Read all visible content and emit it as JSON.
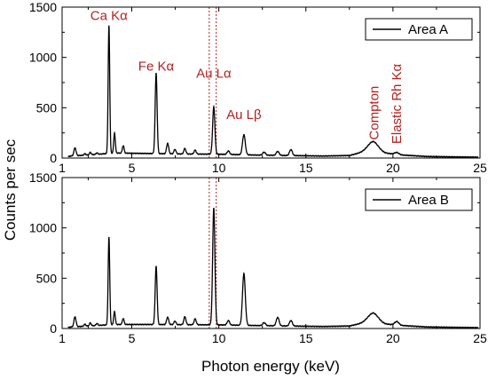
{
  "chart_data": {
    "type": "line",
    "xlabel": "Photon energy (keV)",
    "ylabel": "Counts per sec",
    "xlim": [
      1,
      25
    ],
    "ylim": [
      0,
      1500
    ],
    "x_ticks": [
      "1",
      "5",
      "10",
      "15",
      "20",
      "25"
    ],
    "y_ticks": [
      "0",
      "500",
      "1000",
      "1500"
    ],
    "grid": false,
    "marker_lines_kev": [
      9.45,
      9.85
    ],
    "annotation_color": "#b22222",
    "line_color": "#000000",
    "panels": [
      {
        "legend": "Area A",
        "legend_position": "top-right",
        "annotations": [
          {
            "text": "Ca Kα",
            "x": 3.69,
            "y": 1370
          },
          {
            "text": "Fe Kα",
            "x": 6.4,
            "y": 870
          },
          {
            "text": "Au Lα",
            "x": 9.71,
            "y": 800
          },
          {
            "text": "Au Lβ",
            "x": 11.44,
            "y": 390
          },
          {
            "text": "Compton",
            "x": 18.9,
            "y": 180,
            "rotate": true
          },
          {
            "text": "Elastic Rh Kα",
            "x": 20.2,
            "y": 140,
            "rotate": true
          }
        ],
        "background": [
          [
            1,
            0
          ],
          [
            1.5,
            20
          ],
          [
            2.5,
            30
          ],
          [
            4,
            50
          ],
          [
            6,
            45
          ],
          [
            8,
            40
          ],
          [
            10,
            38
          ],
          [
            12,
            30
          ],
          [
            14,
            25
          ],
          [
            16,
            20
          ],
          [
            17.5,
            25
          ],
          [
            18.3,
            60
          ],
          [
            18.9,
            80
          ],
          [
            19.5,
            50
          ],
          [
            20.5,
            30
          ],
          [
            22,
            15
          ],
          [
            25,
            8
          ]
        ],
        "peaks": [
          {
            "kev": 1.74,
            "height": 80,
            "width": 0.06
          },
          {
            "kev": 2.31,
            "height": 15,
            "width": 0.05
          },
          {
            "kev": 2.62,
            "height": 25,
            "width": 0.05
          },
          {
            "kev": 3.0,
            "height": 15,
            "width": 0.05
          },
          {
            "kev": 3.69,
            "height": 1270,
            "width": 0.045
          },
          {
            "kev": 4.01,
            "height": 200,
            "width": 0.045
          },
          {
            "kev": 4.51,
            "height": 75,
            "width": 0.05
          },
          {
            "kev": 6.4,
            "height": 800,
            "width": 0.055
          },
          {
            "kev": 7.06,
            "height": 105,
            "width": 0.06
          },
          {
            "kev": 7.48,
            "height": 45,
            "width": 0.06
          },
          {
            "kev": 8.05,
            "height": 55,
            "width": 0.06
          },
          {
            "kev": 8.64,
            "height": 40,
            "width": 0.06
          },
          {
            "kev": 9.71,
            "height": 470,
            "width": 0.065
          },
          {
            "kev": 10.55,
            "height": 35,
            "width": 0.07
          },
          {
            "kev": 11.44,
            "height": 200,
            "width": 0.08
          },
          {
            "kev": 12.6,
            "height": 30,
            "width": 0.08
          },
          {
            "kev": 13.38,
            "height": 40,
            "width": 0.08
          },
          {
            "kev": 14.14,
            "height": 60,
            "width": 0.08
          },
          {
            "kev": 18.85,
            "height": 85,
            "width": 0.3
          },
          {
            "kev": 20.22,
            "height": 20,
            "width": 0.12
          }
        ]
      },
      {
        "legend": "Area B",
        "legend_position": "top-right",
        "annotations": [],
        "background": [
          [
            1,
            0
          ],
          [
            1.5,
            15
          ],
          [
            2.5,
            25
          ],
          [
            4,
            40
          ],
          [
            6,
            40
          ],
          [
            8,
            38
          ],
          [
            10,
            36
          ],
          [
            12,
            30
          ],
          [
            14,
            25
          ],
          [
            16,
            20
          ],
          [
            17.5,
            25
          ],
          [
            18.3,
            55
          ],
          [
            18.9,
            75
          ],
          [
            19.5,
            45
          ],
          [
            20.5,
            30
          ],
          [
            22,
            15
          ],
          [
            25,
            8
          ]
        ],
        "peaks": [
          {
            "kev": 1.74,
            "height": 100,
            "width": 0.06
          },
          {
            "kev": 2.31,
            "height": 20,
            "width": 0.05
          },
          {
            "kev": 2.62,
            "height": 30,
            "width": 0.05
          },
          {
            "kev": 3.0,
            "height": 20,
            "width": 0.05
          },
          {
            "kev": 3.69,
            "height": 870,
            "width": 0.045
          },
          {
            "kev": 4.01,
            "height": 130,
            "width": 0.045
          },
          {
            "kev": 4.51,
            "height": 60,
            "width": 0.05
          },
          {
            "kev": 6.4,
            "height": 580,
            "width": 0.055
          },
          {
            "kev": 7.06,
            "height": 75,
            "width": 0.06
          },
          {
            "kev": 7.48,
            "height": 35,
            "width": 0.06
          },
          {
            "kev": 8.05,
            "height": 80,
            "width": 0.06
          },
          {
            "kev": 8.64,
            "height": 60,
            "width": 0.06
          },
          {
            "kev": 9.71,
            "height": 1160,
            "width": 0.065
          },
          {
            "kev": 10.55,
            "height": 45,
            "width": 0.07
          },
          {
            "kev": 11.44,
            "height": 515,
            "width": 0.08
          },
          {
            "kev": 12.6,
            "height": 30,
            "width": 0.08
          },
          {
            "kev": 13.38,
            "height": 85,
            "width": 0.08
          },
          {
            "kev": 14.14,
            "height": 55,
            "width": 0.08
          },
          {
            "kev": 18.85,
            "height": 80,
            "width": 0.3
          },
          {
            "kev": 20.22,
            "height": 35,
            "width": 0.12
          }
        ]
      }
    ]
  }
}
